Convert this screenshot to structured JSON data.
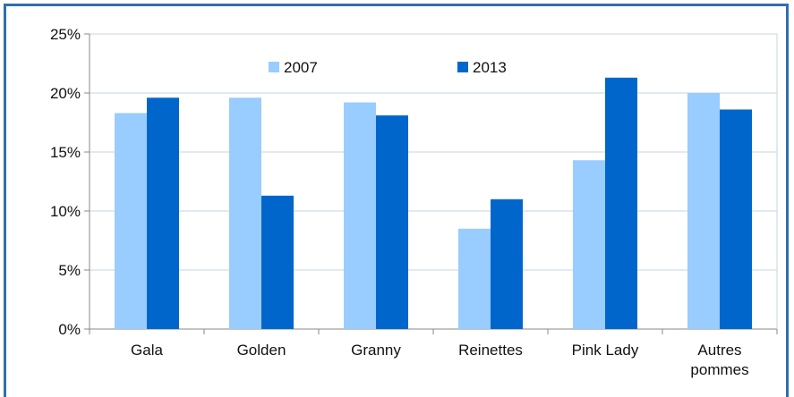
{
  "chart_data": {
    "type": "bar",
    "categories": [
      "Gala",
      "Golden",
      "Granny",
      "Reinettes",
      "Pink Lady",
      [
        "Autres",
        "pommes"
      ]
    ],
    "series": [
      {
        "name": "2007",
        "color": "#99ccff",
        "values": [
          18.3,
          19.6,
          19.2,
          8.5,
          14.3,
          20.0
        ]
      },
      {
        "name": "2013",
        "color": "#0066cc",
        "values": [
          19.6,
          11.3,
          18.1,
          11.0,
          21.3,
          18.6
        ]
      }
    ],
    "ylim": [
      0,
      25
    ],
    "yticks": [
      0,
      5,
      10,
      15,
      20,
      25
    ],
    "ytick_labels": [
      "0%",
      "5%",
      "10%",
      "15%",
      "20%",
      "25%"
    ],
    "grid": true,
    "legend": "top-center"
  }
}
